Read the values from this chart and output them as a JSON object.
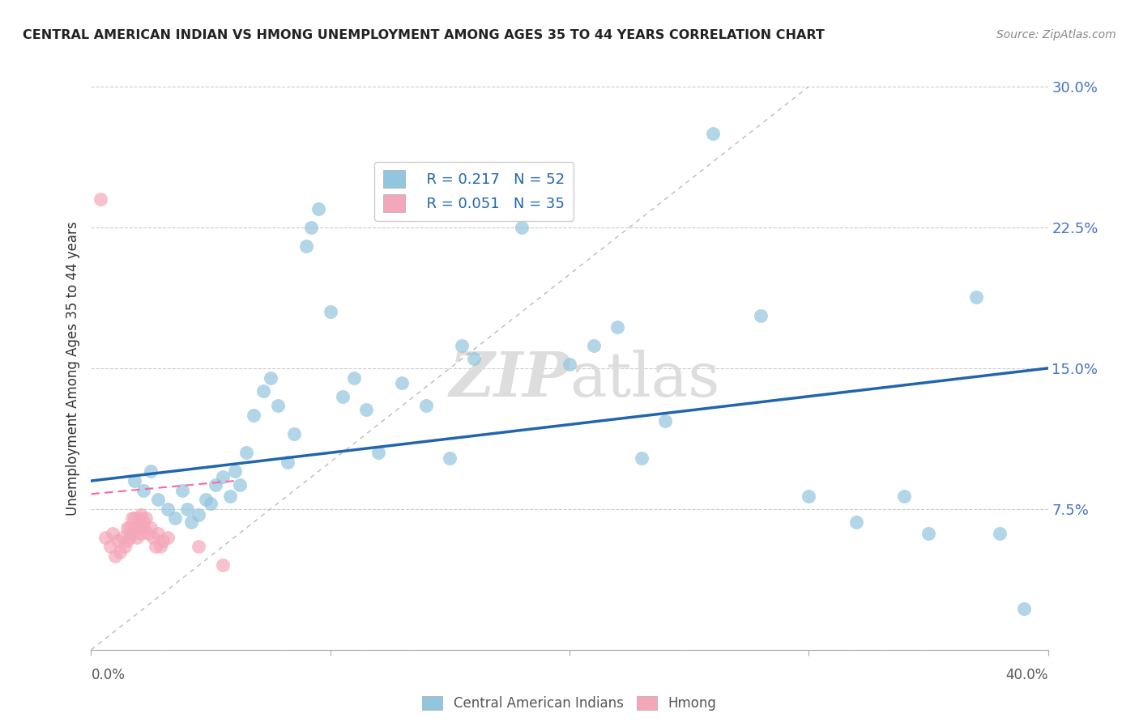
{
  "title": "CENTRAL AMERICAN INDIAN VS HMONG UNEMPLOYMENT AMONG AGES 35 TO 44 YEARS CORRELATION CHART",
  "source": "Source: ZipAtlas.com",
  "ylabel": "Unemployment Among Ages 35 to 44 years",
  "xlim": [
    0.0,
    0.4
  ],
  "ylim": [
    0.0,
    0.3
  ],
  "yticks": [
    0.0,
    0.075,
    0.15,
    0.225,
    0.3
  ],
  "ytick_labels": [
    "",
    "7.5%",
    "15.0%",
    "22.5%",
    "30.0%"
  ],
  "xticks": [
    0.0,
    0.1,
    0.2,
    0.3,
    0.4
  ],
  "legend_r1": "R = 0.217",
  "legend_n1": "N = 52",
  "legend_r2": "R = 0.051",
  "legend_n2": "N = 35",
  "blue_color": "#92c5de",
  "pink_color": "#f4a7b9",
  "blue_line_color": "#2166ac",
  "pink_line_color": "#f768a1",
  "ref_line_color": "#bbbbbb",
  "watermark_color": "#dddddd",
  "blue_scatter_x": [
    0.018,
    0.022,
    0.025,
    0.028,
    0.032,
    0.035,
    0.038,
    0.04,
    0.042,
    0.045,
    0.048,
    0.05,
    0.052,
    0.055,
    0.058,
    0.06,
    0.062,
    0.065,
    0.068,
    0.072,
    0.075,
    0.078,
    0.082,
    0.085,
    0.09,
    0.092,
    0.095,
    0.1,
    0.105,
    0.11,
    0.115,
    0.12,
    0.13,
    0.14,
    0.15,
    0.16,
    0.18,
    0.2,
    0.21,
    0.22,
    0.23,
    0.24,
    0.26,
    0.28,
    0.3,
    0.32,
    0.34,
    0.35,
    0.37,
    0.38,
    0.39,
    0.155
  ],
  "blue_scatter_y": [
    0.09,
    0.085,
    0.095,
    0.08,
    0.075,
    0.07,
    0.085,
    0.075,
    0.068,
    0.072,
    0.08,
    0.078,
    0.088,
    0.092,
    0.082,
    0.095,
    0.088,
    0.105,
    0.125,
    0.138,
    0.145,
    0.13,
    0.1,
    0.115,
    0.215,
    0.225,
    0.235,
    0.18,
    0.135,
    0.145,
    0.128,
    0.105,
    0.142,
    0.13,
    0.102,
    0.155,
    0.225,
    0.152,
    0.162,
    0.172,
    0.102,
    0.122,
    0.275,
    0.178,
    0.082,
    0.068,
    0.082,
    0.062,
    0.188,
    0.062,
    0.022,
    0.162
  ],
  "pink_scatter_x": [
    0.004,
    0.006,
    0.008,
    0.009,
    0.01,
    0.011,
    0.012,
    0.013,
    0.014,
    0.015,
    0.015,
    0.016,
    0.016,
    0.017,
    0.017,
    0.018,
    0.018,
    0.019,
    0.02,
    0.02,
    0.021,
    0.021,
    0.022,
    0.022,
    0.023,
    0.024,
    0.025,
    0.026,
    0.027,
    0.028,
    0.029,
    0.03,
    0.032,
    0.045,
    0.055
  ],
  "pink_scatter_y": [
    0.24,
    0.06,
    0.055,
    0.062,
    0.05,
    0.058,
    0.052,
    0.06,
    0.055,
    0.058,
    0.065,
    0.06,
    0.065,
    0.07,
    0.062,
    0.065,
    0.07,
    0.06,
    0.065,
    0.07,
    0.072,
    0.062,
    0.065,
    0.068,
    0.07,
    0.062,
    0.065,
    0.06,
    0.055,
    0.062,
    0.055,
    0.058,
    0.06,
    0.055,
    0.045
  ],
  "blue_line_x": [
    0.0,
    0.4
  ],
  "blue_line_y": [
    0.09,
    0.15
  ],
  "pink_line_x": [
    0.0,
    0.06
  ],
  "pink_line_y": [
    0.083,
    0.09
  ],
  "ref_line_x": [
    0.0,
    0.3
  ],
  "ref_line_y": [
    0.0,
    0.3
  ]
}
